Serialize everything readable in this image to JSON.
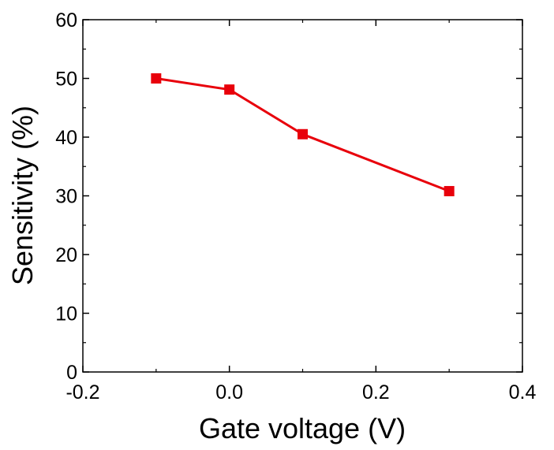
{
  "chart_data": {
    "type": "line",
    "title": "",
    "xlabel": "Gate voltage (V)",
    "ylabel": "Sensitivity (%)",
    "xlim": [
      -0.2,
      0.4
    ],
    "ylim": [
      0,
      60
    ],
    "x_ticks": [
      -0.2,
      0.0,
      0.2,
      0.4
    ],
    "x_tick_labels": [
      "-0.2",
      "0.0",
      "0.2",
      "0.4"
    ],
    "y_ticks": [
      0,
      10,
      20,
      30,
      40,
      50,
      60
    ],
    "y_tick_labels": [
      "0",
      "10",
      "20",
      "30",
      "40",
      "50",
      "60"
    ],
    "grid": false,
    "legend": "none",
    "series": [
      {
        "color": "#e8000b",
        "marker": "square",
        "x": [
          -0.1,
          0.0,
          0.1,
          0.3
        ],
        "y": [
          50.0,
          48.1,
          40.5,
          30.8
        ]
      }
    ]
  }
}
